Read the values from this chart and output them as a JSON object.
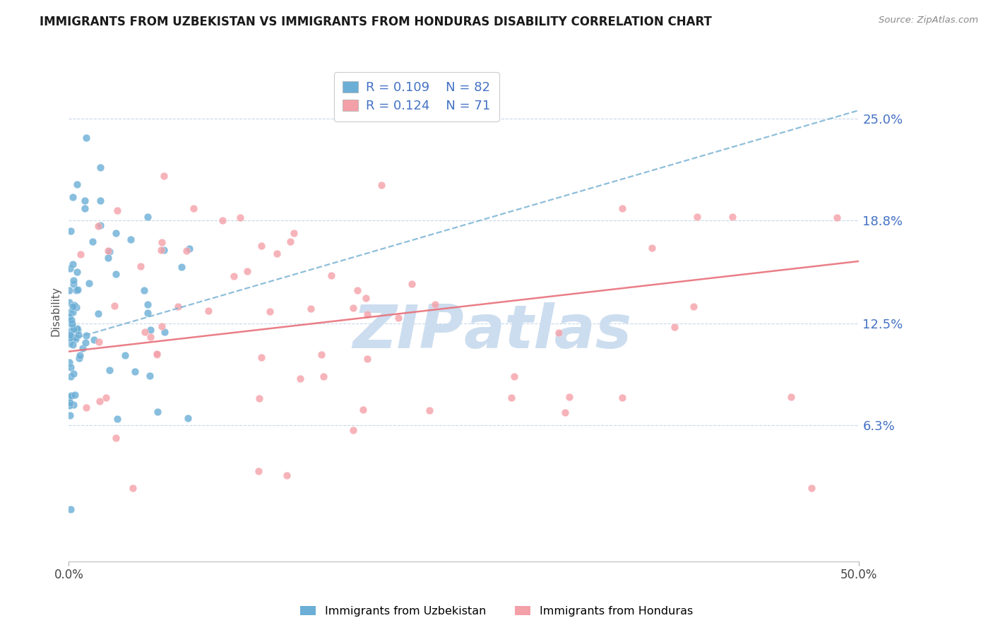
{
  "title": "IMMIGRANTS FROM UZBEKISTAN VS IMMIGRANTS FROM HONDURAS DISABILITY CORRELATION CHART",
  "source": "Source: ZipAtlas.com",
  "ylabel": "Disability",
  "ytick_labels": [
    "6.3%",
    "12.5%",
    "18.8%",
    "25.0%"
  ],
  "ytick_values": [
    0.063,
    0.125,
    0.188,
    0.25
  ],
  "xlim": [
    0.0,
    0.5
  ],
  "ylim": [
    -0.02,
    0.285
  ],
  "legend_r1": "R = 0.109",
  "legend_n1": "N = 82",
  "legend_r2": "R = 0.124",
  "legend_n2": "N = 71",
  "series1_color": "#6baed6",
  "series2_color": "#f4a0a8",
  "trendline1_color": "#7ab3d4",
  "trendline2_color": "#e8707a",
  "background_color": "#ffffff",
  "grid_color": "#c8d8ea",
  "title_color": "#1a1a1a",
  "axis_label_color": "#4472c4",
  "watermark_color": "#ccddef"
}
